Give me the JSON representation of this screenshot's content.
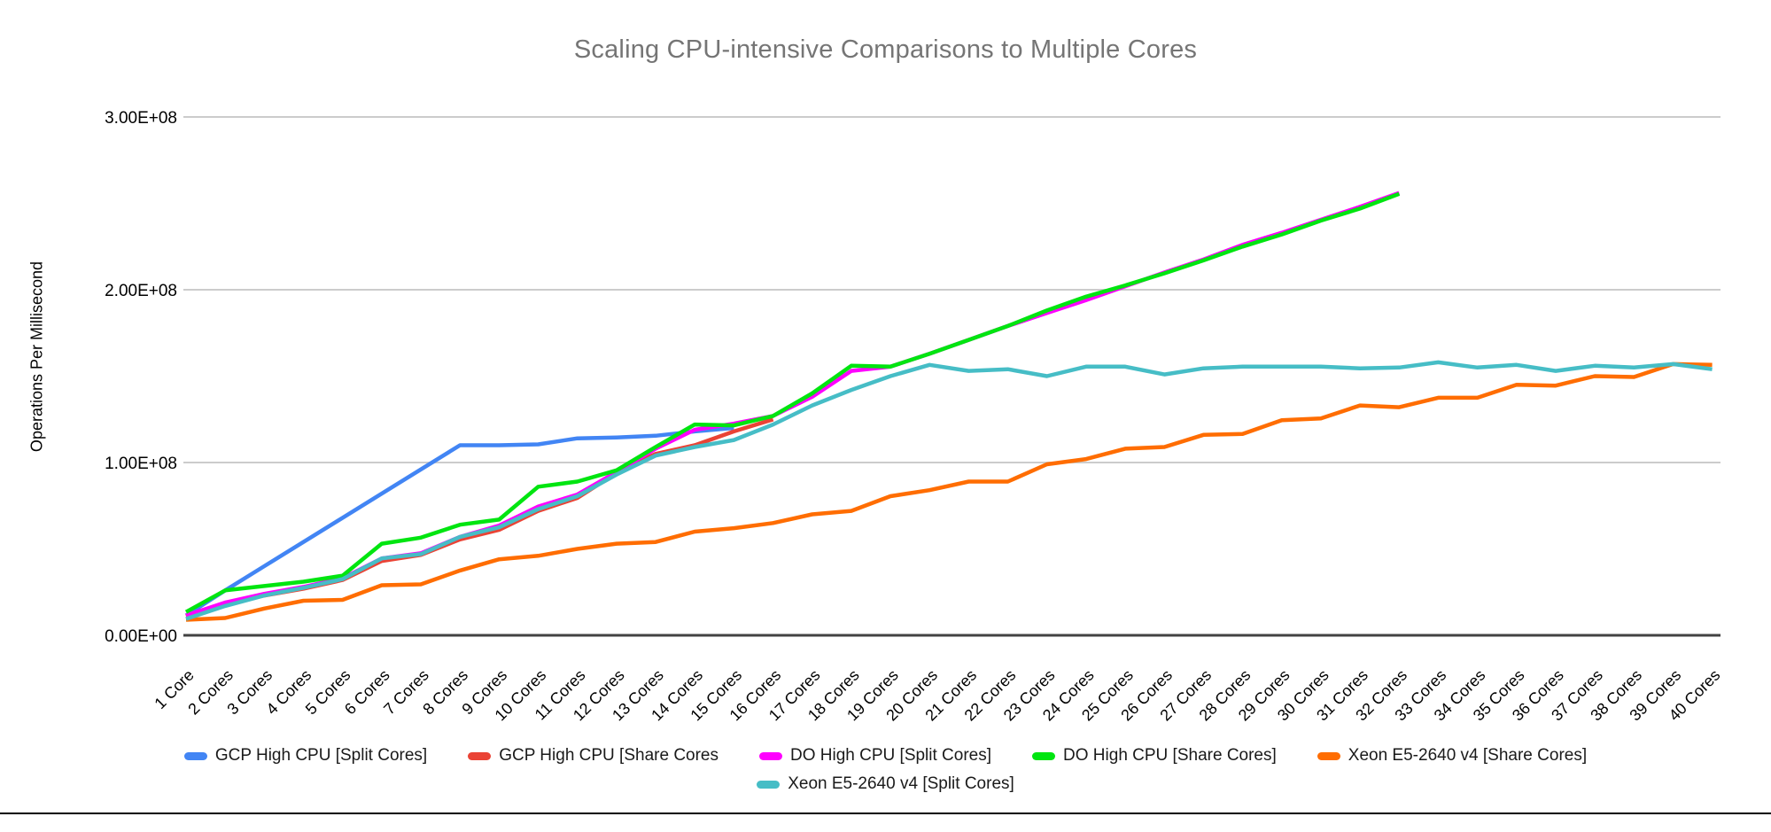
{
  "chart": {
    "title": "Scaling CPU-intensive Comparisons to Multiple Cores",
    "y_axis_title": "Operations Per Millisecond",
    "title_color": "#757575",
    "axis_color": "#424242",
    "gridline_color": "#cccccc",
    "background": "#ffffff"
  },
  "chart_data": {
    "type": "line",
    "title": "Scaling CPU-intensive Comparisons to Multiple Cores",
    "xlabel": "",
    "ylabel": "Operations Per Millisecond",
    "ylim": [
      0,
      300000000
    ],
    "grid": "horizontal",
    "legend_position": "bottom",
    "y_ticks": [
      {
        "label": "0.00E+00",
        "value": 0
      },
      {
        "label": "1.00E+08",
        "value": 100000000
      },
      {
        "label": "2.00E+08",
        "value": 200000000
      },
      {
        "label": "3.00E+08",
        "value": 300000000
      }
    ],
    "x_categories": [
      "1 Core",
      "2 Cores",
      "3 Cores",
      "4 Cores",
      "5 Cores",
      "6 Cores",
      "7 Cores",
      "8 Cores",
      "9 Cores",
      "10 Cores",
      "11 Cores",
      "12 Cores",
      "13 Cores",
      "14 Cores",
      "15 Cores",
      "16 Cores",
      "17 Cores",
      "18 Cores",
      "19 Cores",
      "20 Cores",
      "21 Cores",
      "22 Cores",
      "23 Cores",
      "24 Cores",
      "25 Cores",
      "26 Cores",
      "27 Cores",
      "28 Cores",
      "29 Cores",
      "30 Cores",
      "31 Cores",
      "32 Cores",
      "33 Cores",
      "34 Cores",
      "35 Cores",
      "36 Cores",
      "37 Cores",
      "38 Cores",
      "39 Cores",
      "40 Cores"
    ],
    "series": [
      {
        "name": "GCP High CPU [Split Cores]",
        "color": "#4285F4",
        "values": [
          11500000,
          26000000,
          40000000,
          54000000,
          68000000,
          82000000,
          96000000,
          110000000,
          110000000,
          110500000,
          114000000,
          114500000,
          115500000,
          118000000,
          120000000
        ]
      },
      {
        "name": "GCP High CPU [Share Cores",
        "color": "#EA4335",
        "values": [
          11000000,
          18000000,
          23000000,
          27000000,
          32000000,
          43000000,
          46500000,
          55500000,
          61000000,
          72000000,
          79500000,
          94000000,
          105000000,
          110000000,
          118000000,
          125000000
        ]
      },
      {
        "name": "DO High CPU [Split Cores]",
        "color": "#FF00FF",
        "values": [
          11500000,
          19000000,
          24000000,
          28000000,
          33000000,
          44500000,
          47500000,
          57000000,
          63500000,
          74500000,
          81500000,
          94500000,
          108000000,
          119000000,
          122500000,
          127000000,
          138000000,
          153000000,
          155500000,
          163000000,
          171000000,
          179000000,
          186500000,
          194000000,
          202000000,
          210000000,
          217500000,
          226000000,
          233000000,
          240500000,
          248000000,
          256000000
        ]
      },
      {
        "name": "DO High CPU [Share Cores]",
        "color": "#00E510",
        "values": [
          13500000,
          26000000,
          28500000,
          31000000,
          34500000,
          53000000,
          56500000,
          64000000,
          67000000,
          86000000,
          89000000,
          95500000,
          109000000,
          122000000,
          121500000,
          127000000,
          140000000,
          156000000,
          155500000,
          163000000,
          171000000,
          179000000,
          188000000,
          196000000,
          202500000,
          209500000,
          217000000,
          225000000,
          232000000,
          240000000,
          247000000,
          255500000
        ]
      },
      {
        "name": "Xeon E5-2640 v4 [Share Cores]",
        "color": "#FF6D01",
        "values": [
          9000000,
          10000000,
          15500000,
          20000000,
          20500000,
          29000000,
          29500000,
          37500000,
          44000000,
          46000000,
          50000000,
          53000000,
          54000000,
          60000000,
          62000000,
          65000000,
          70000000,
          72000000,
          80500000,
          84000000,
          89000000,
          89000000,
          99000000,
          102000000,
          108000000,
          109000000,
          116000000,
          116500000,
          124500000,
          125500000,
          133000000,
          132000000,
          137500000,
          137500000,
          145000000,
          144500000,
          150000000,
          149500000,
          157000000,
          156500000
        ]
      },
      {
        "name": "Xeon E5-2640 v4 [Split Cores]",
        "color": "#46BDC6",
        "values": [
          9500000,
          17000000,
          23000000,
          27500000,
          32500000,
          44500000,
          47000000,
          57000000,
          62500000,
          73000000,
          80500000,
          93000000,
          104000000,
          109000000,
          113000000,
          122000000,
          133000000,
          142000000,
          150000000,
          156500000,
          153000000,
          154000000,
          150000000,
          155500000,
          155500000,
          151000000,
          154500000,
          155500000,
          155500000,
          155500000,
          154500000,
          155000000,
          158000000,
          155000000,
          156500000,
          153000000,
          156000000,
          155000000,
          157000000,
          154000000
        ]
      }
    ],
    "legend_rows": [
      [
        0,
        1,
        2,
        3,
        4
      ],
      [
        5
      ]
    ]
  }
}
